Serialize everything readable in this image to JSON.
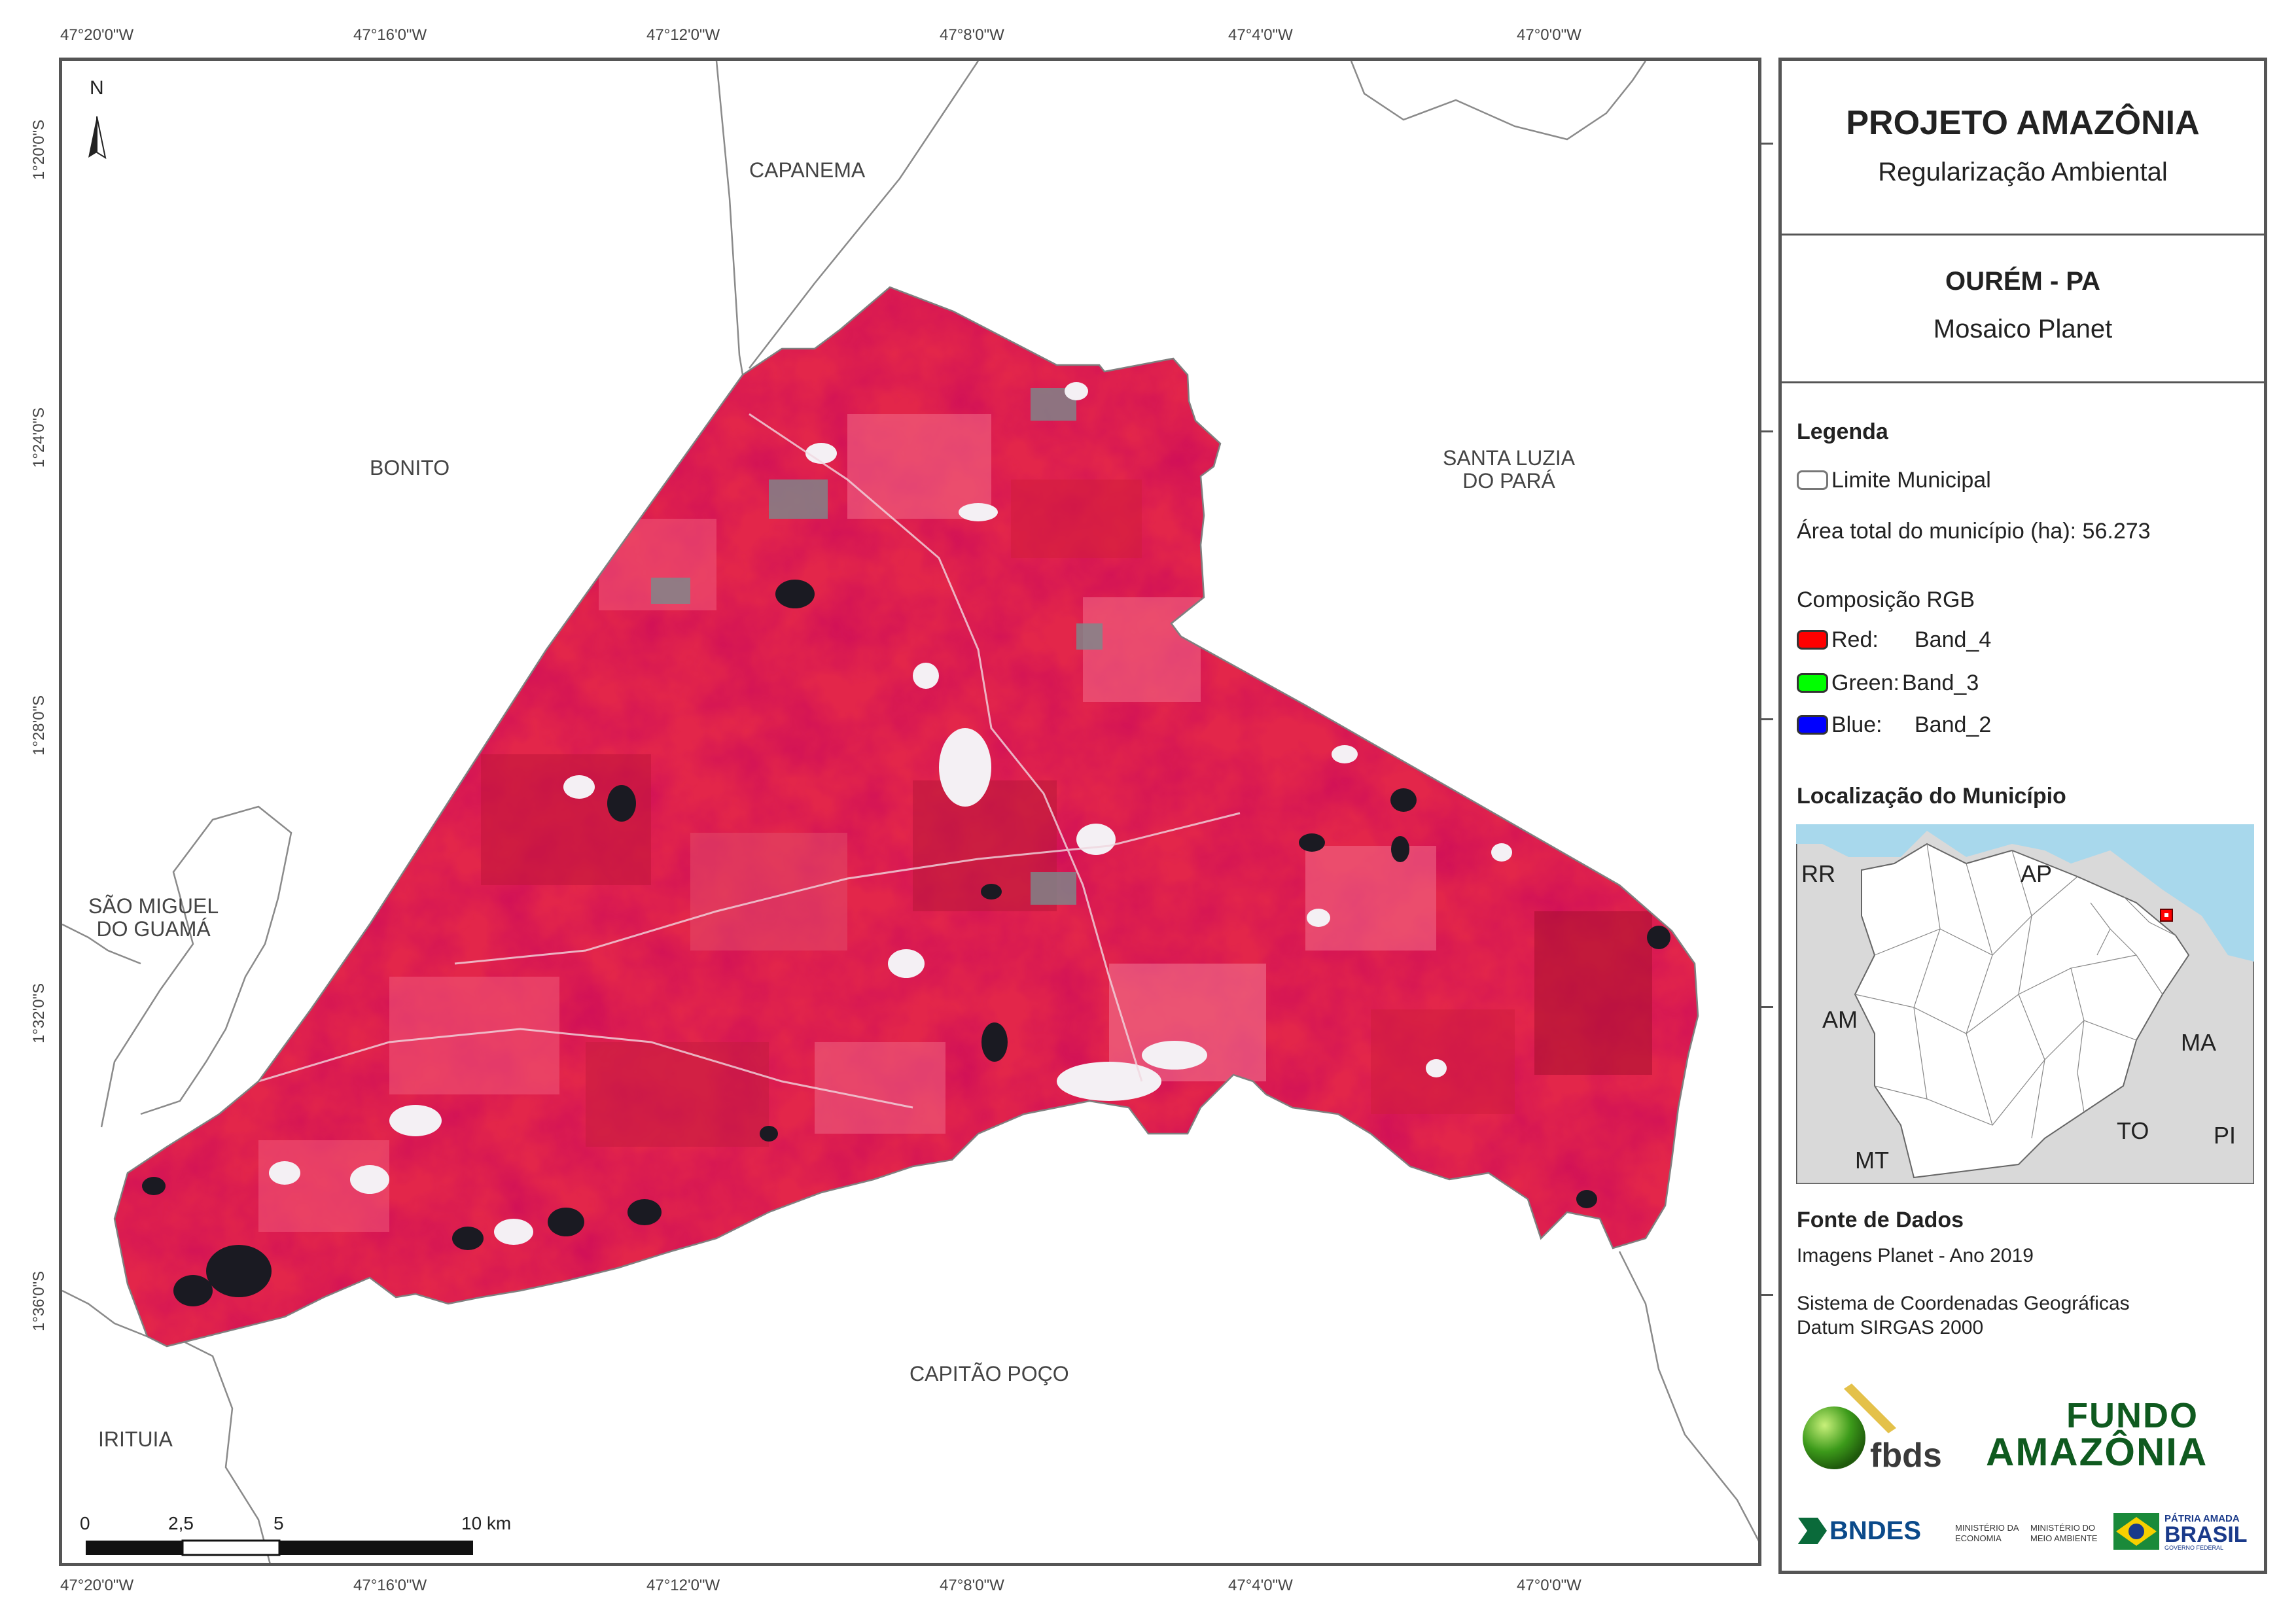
{
  "coords": {
    "top": [
      "47°20'0\"W",
      "47°16'0\"W",
      "47°12'0\"W",
      "47°8'0\"W",
      "47°4'0\"W",
      "47°0'0\"W"
    ],
    "bottom": [
      "47°20'0\"W",
      "47°16'0\"W",
      "47°12'0\"W",
      "47°8'0\"W",
      "47°4'0\"W",
      "47°0'0\"W"
    ],
    "left": [
      "1°20'0\"S",
      "1°24'0\"S",
      "1°28'0\"S",
      "1°32'0\"S",
      "1°36'0\"S"
    ]
  },
  "neighbors": {
    "capanema": "CAPANEMA",
    "bonito": "BONITO",
    "santa_luzia": "SANTA LUZIA\nDO PARÁ",
    "sao_miguel": "SÃO MIGUEL\nDO GUAMÁ",
    "irituia": "IRITUIA",
    "capitao_poco": "CAPITÃO POÇO"
  },
  "north_label": "N",
  "scale": {
    "labels": [
      "0",
      "2,5",
      "5",
      "10 km"
    ]
  },
  "panel": {
    "title": "PROJETO AMAZÔNIA",
    "subtitle": "Regularização Ambiental",
    "municipality": "OURÉM - PA",
    "mosaic": "Mosaico Planet",
    "legend_heading": "Legenda",
    "limit_label": "Limite Municipal",
    "area_label": "Área total do município (ha): 56.273",
    "rgb_heading": "Composição RGB",
    "rgb": [
      {
        "label": "Red:",
        "band": "Band_4",
        "color": "#ff0000"
      },
      {
        "label": "Green:",
        "band": "Band_3",
        "color": "#00ff00"
      },
      {
        "label": "Blue:",
        "band": "Band_2",
        "color": "#0000ff"
      }
    ],
    "location_heading": "Localização do Município",
    "inset_labels": [
      "RR",
      "AP",
      "AM",
      "MA",
      "TO",
      "PI",
      "MT"
    ],
    "sources_heading": "Fonte de Dados",
    "source_1": "Imagens Planet - Ano 2019",
    "source_2": "Sistema de Coordenadas Geográficas",
    "source_3": "Datum SIRGAS 2000",
    "logos": {
      "fbds": "fbds",
      "fundo_1": "FUNDO",
      "fundo_2": "AMAZÔNIA",
      "bndes": "BNDES",
      "min_economia": "MINISTÉRIO DA\nECONOMIA",
      "min_meio": "MINISTÉRIO DO\nMEIO AMBIENTE",
      "patria": "PÁTRIA AMADA",
      "brasil": "BRASIL",
      "governo": "GOVERNO FEDERAL"
    }
  }
}
